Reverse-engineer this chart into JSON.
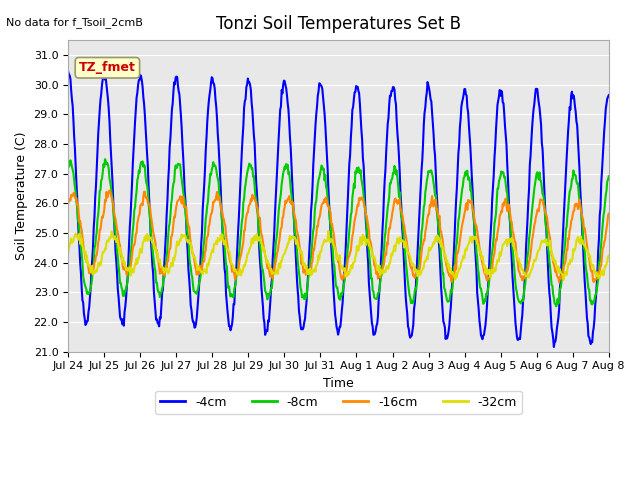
{
  "title": "Tonzi Soil Temperatures Set B",
  "no_data_label": "No data for f_Tsoil_2cmB",
  "xlabel": "Time",
  "ylabel": "Soil Temperature (C)",
  "ylim": [
    21.0,
    31.5
  ],
  "yticks": [
    21.0,
    22.0,
    23.0,
    24.0,
    25.0,
    26.0,
    27.0,
    28.0,
    29.0,
    30.0,
    31.0
  ],
  "xtick_labels": [
    "Jul 24",
    "Jul 25",
    "Jul 26",
    "Jul 27",
    "Jul 28",
    "Jul 29",
    "Jul 30",
    "Jul 31",
    "Aug 1",
    "Aug 2",
    "Aug 3",
    "Aug 4",
    "Aug 5",
    "Aug 6",
    "Aug 7",
    "Aug 8"
  ],
  "bg_color": "#e8e8e8",
  "fig_color": "#ffffff",
  "tz_fmet_color": "#cc0000",
  "tz_fmet_bg": "#ffffcc",
  "tz_fmet_edge": "#999966",
  "series_order": [
    "-4cm",
    "-8cm",
    "-16cm",
    "-32cm"
  ],
  "series": {
    "-4cm": {
      "color": "#0000ff",
      "lw": 1.5,
      "amplitude": 4.2,
      "mean": 26.2,
      "phase": 0.0,
      "trend": -0.05
    },
    "-8cm": {
      "color": "#00cc00",
      "lw": 1.5,
      "amplitude": 2.2,
      "mean": 25.2,
      "phase": 0.3,
      "trend": -0.03
    },
    "-16cm": {
      "color": "#ff8800",
      "lw": 1.5,
      "amplitude": 1.3,
      "mean": 25.0,
      "phase": 0.8,
      "trend": -0.02
    },
    "-32cm": {
      "color": "#dddd00",
      "lw": 1.5,
      "amplitude": 0.6,
      "mean": 24.3,
      "phase": 1.4,
      "trend": -0.01
    }
  },
  "n_days": 15,
  "pts_per_day": 48
}
